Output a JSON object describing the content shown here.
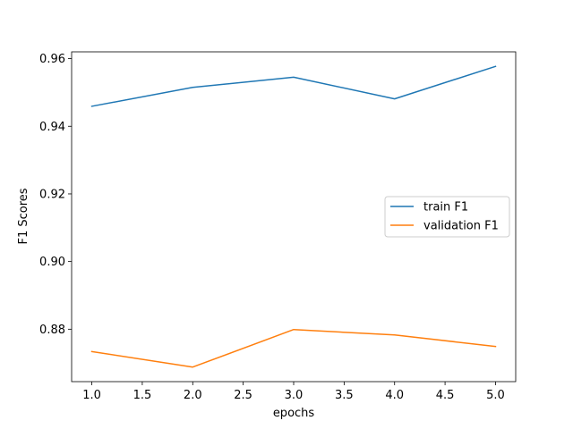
{
  "chart_data": {
    "type": "line",
    "title": "",
    "xlabel": "epochs",
    "ylabel": "F1 Scores",
    "xlim": [
      0.8,
      5.2
    ],
    "ylim": [
      0.8645,
      0.962
    ],
    "xticks": [
      1.0,
      1.5,
      2.0,
      2.5,
      3.0,
      3.5,
      4.0,
      4.5,
      5.0
    ],
    "xtick_labels": [
      "1.0",
      "1.5",
      "2.0",
      "2.5",
      "3.0",
      "3.5",
      "4.0",
      "4.5",
      "5.0"
    ],
    "yticks": [
      0.88,
      0.9,
      0.92,
      0.94,
      0.96
    ],
    "ytick_labels": [
      "0.88",
      "0.90",
      "0.92",
      "0.94",
      "0.96"
    ],
    "grid": false,
    "legend_position": "center-right",
    "x": [
      1,
      2,
      3,
      4,
      5
    ],
    "series": [
      {
        "name": "train F1",
        "color": "#1f77b4",
        "values": [
          0.9459,
          0.9515,
          0.9545,
          0.9481,
          0.9577
        ]
      },
      {
        "name": "validation F1",
        "color": "#ff7f0e",
        "values": [
          0.8734,
          0.8688,
          0.8799,
          0.8783,
          0.8749
        ]
      }
    ]
  }
}
